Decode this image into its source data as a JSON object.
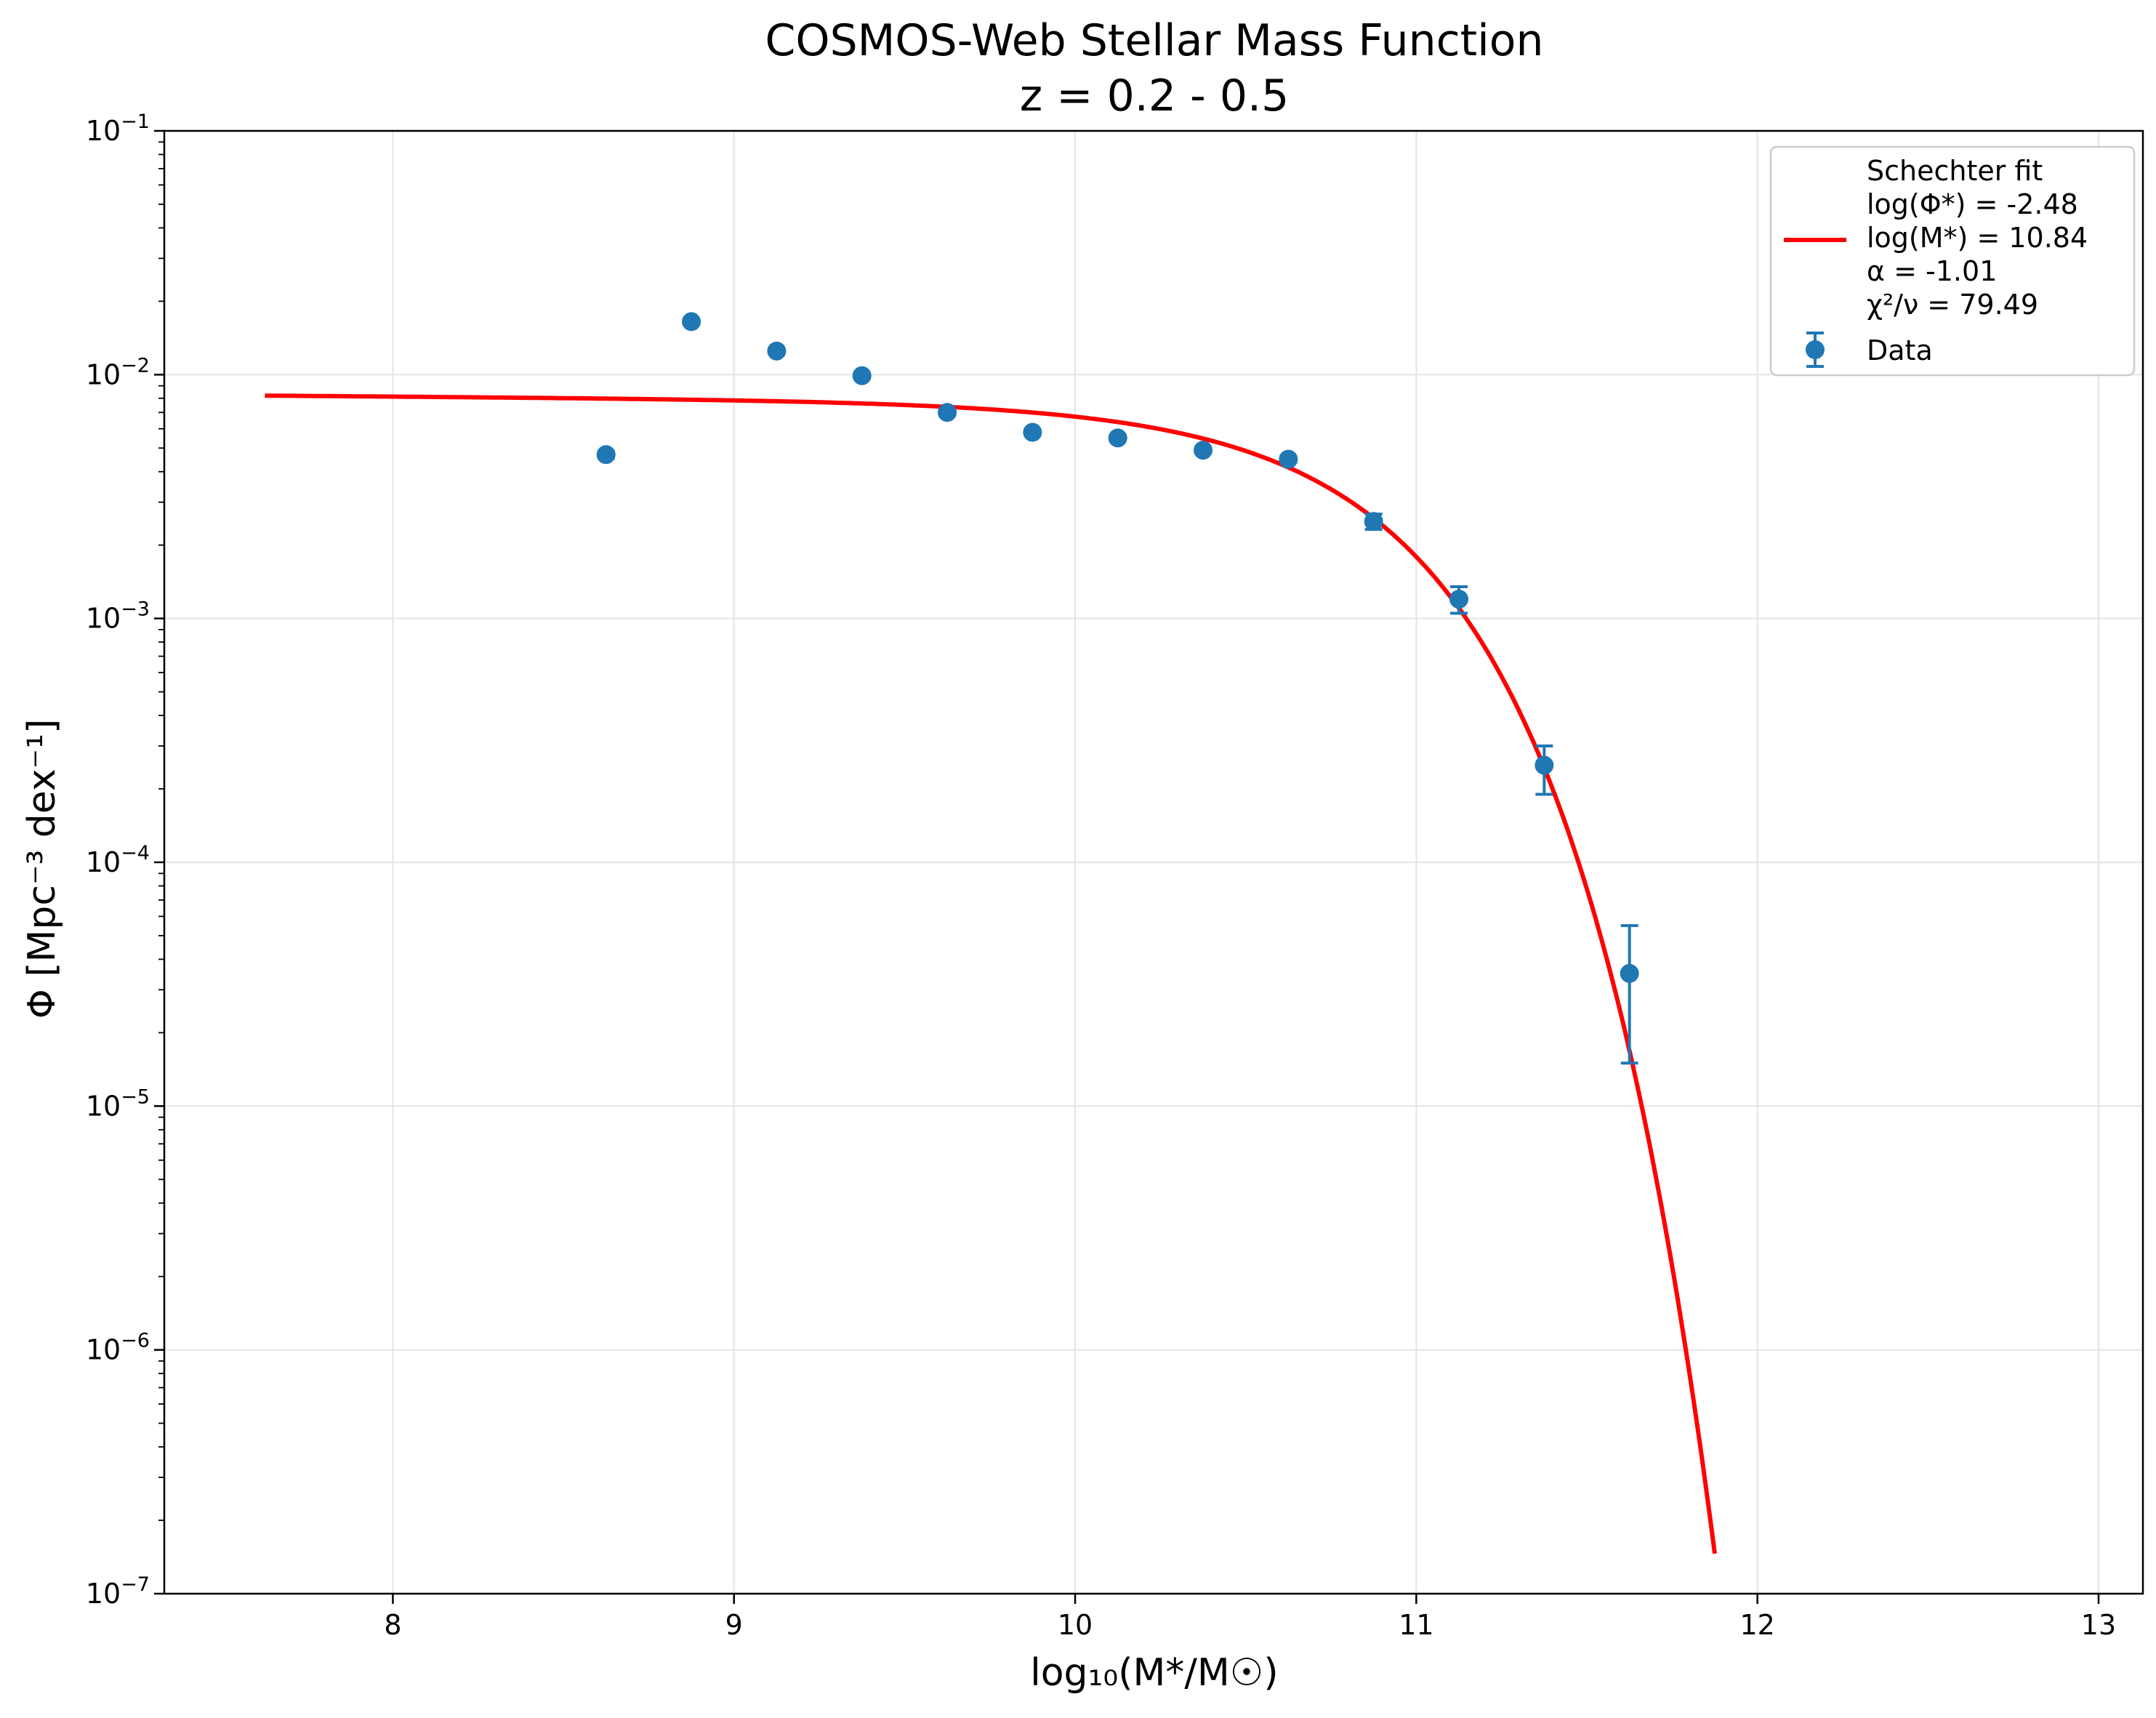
{
  "chart_data": {
    "type": "scatter",
    "title": "COSMOS-Web Stellar Mass Function",
    "subtitle": "z = 0.2 - 0.5",
    "xlabel": "log₁₀(M*/M☉)",
    "ylabel": "Φ [Mpc⁻³ dex⁻¹]",
    "xlim": [
      7.33,
      13.13
    ],
    "ylim": [
      1e-07,
      0.1
    ],
    "yscale": "log",
    "grid": true,
    "legend_position": "top-right",
    "x_ticks": [
      8,
      9,
      10,
      11,
      12,
      13
    ],
    "x_tick_labels": [
      "8",
      "9",
      "10",
      "11",
      "12",
      "13"
    ],
    "y_ticks": [
      1e-07,
      1e-06,
      1e-05,
      0.0001,
      0.001,
      0.01,
      0.1
    ],
    "y_tick_labels": [
      {
        "base": "10",
        "exp": "−7"
      },
      {
        "base": "10",
        "exp": "−6"
      },
      {
        "base": "10",
        "exp": "−5"
      },
      {
        "base": "10",
        "exp": "−4"
      },
      {
        "base": "10",
        "exp": "−3"
      },
      {
        "base": "10",
        "exp": "−2"
      },
      {
        "base": "10",
        "exp": "−1"
      }
    ],
    "series": [
      {
        "name": "Data",
        "kind": "errorbar-points",
        "color": "#1f77b4",
        "x": [
          8.625,
          8.875,
          9.125,
          9.375,
          9.625,
          9.875,
          10.125,
          10.375,
          10.625,
          10.875,
          11.125,
          11.375,
          11.625
        ],
        "y": [
          0.0047,
          0.0165,
          0.0125,
          0.0099,
          0.007,
          0.0058,
          0.0055,
          0.0049,
          0.0045,
          0.0025,
          0.0012,
          0.00025,
          3.5e-05
        ],
        "y_err_low": [
          0.00015,
          0.0004,
          0.0003,
          0.00025,
          0.00018,
          0.00015,
          0.00014,
          0.00013,
          0.00013,
          0.00018,
          0.00015,
          6e-05,
          2e-05
        ],
        "y_err_high": [
          0.00015,
          0.0004,
          0.0003,
          0.00025,
          0.00018,
          0.00015,
          0.00014,
          0.00013,
          0.00013,
          0.00018,
          0.00015,
          5e-05,
          2e-05
        ]
      },
      {
        "name": "Schechter fit",
        "kind": "line",
        "color": "#ff0000",
        "x_range": [
          7.625,
          11.875
        ],
        "log_phi_star": -2.48,
        "log_m_star": 10.84,
        "alpha": -1.01
      }
    ],
    "legend": {
      "fit_lines": [
        "Schechter fit",
        "log(Φ*) = -2.48",
        "log(M*) = 10.84",
        "α = -1.01",
        "χ²/ν = 79.49"
      ],
      "data_label": "Data"
    }
  }
}
